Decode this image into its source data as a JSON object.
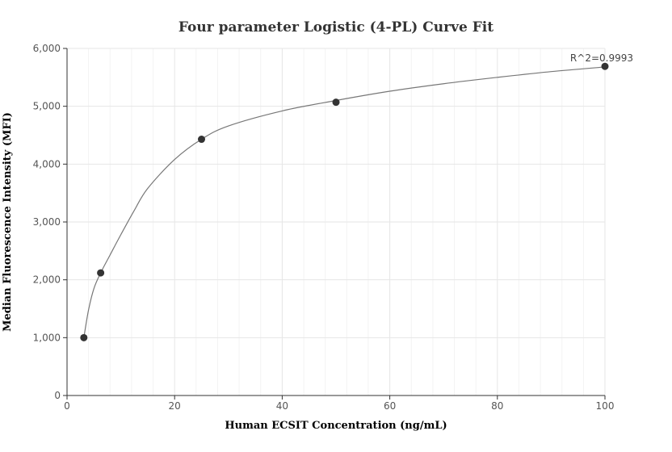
{
  "chart_data": {
    "type": "scatter",
    "title": "Four parameter Logistic (4-PL) Curve Fit",
    "xlabel": "Human ECSIT Concentration (ng/mL)",
    "ylabel": "Median Fluorescence Intensity (MFI)",
    "xlim": [
      0,
      100
    ],
    "ylim": [
      0,
      6000
    ],
    "x_ticks": [
      0,
      20,
      40,
      60,
      80,
      100
    ],
    "y_ticks": [
      0,
      1000,
      2000,
      3000,
      4000,
      5000,
      6000
    ],
    "x_tick_labels": [
      "0",
      "20",
      "40",
      "60",
      "80",
      "100"
    ],
    "y_tick_labels": [
      "0",
      "1,000",
      "2,000",
      "3,000",
      "4,000",
      "5,000",
      "6,000"
    ],
    "grid": true,
    "points": [
      {
        "x": 3.125,
        "y": 1000
      },
      {
        "x": 6.25,
        "y": 2120
      },
      {
        "x": 25,
        "y": 4430
      },
      {
        "x": 50,
        "y": 5070
      },
      {
        "x": 100,
        "y": 5690
      }
    ],
    "fit_curve": {
      "model": "4PL",
      "x": [
        3.125,
        4,
        5,
        6.25,
        8,
        10,
        12.5,
        15,
        20,
        25,
        30,
        40,
        50,
        60,
        70,
        80,
        90,
        100
      ],
      "y": [
        1000,
        1480,
        1850,
        2120,
        2430,
        2780,
        3200,
        3580,
        4080,
        4430,
        4660,
        4920,
        5100,
        5260,
        5390,
        5500,
        5600,
        5680
      ]
    },
    "annotation": "R^2=0.9993",
    "colors": {
      "points": "#333333",
      "curve": "#777777",
      "grid": "#e6e6e6",
      "axis": "#333333"
    }
  }
}
